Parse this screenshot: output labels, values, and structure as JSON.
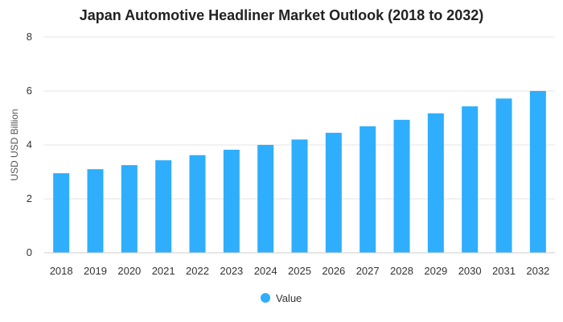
{
  "chart_data": {
    "type": "bar",
    "title": "Japan Automotive Headliner Market Outlook (2018 to 2032)",
    "xlabel": "",
    "ylabel": "USD USD Billion",
    "categories": [
      "2018",
      "2019",
      "2020",
      "2021",
      "2022",
      "2023",
      "2024",
      "2025",
      "2026",
      "2027",
      "2028",
      "2029",
      "2030",
      "2031",
      "2032"
    ],
    "series": [
      {
        "name": "Value",
        "values": [
          2.95,
          3.1,
          3.25,
          3.43,
          3.62,
          3.82,
          4.0,
          4.2,
          4.45,
          4.69,
          4.93,
          5.17,
          5.43,
          5.72,
          6.0
        ]
      }
    ],
    "ylim": [
      0,
      8
    ],
    "yticks": [
      "0",
      "2",
      "4",
      "6",
      "8"
    ],
    "grid": true,
    "legend": "bottom",
    "colors": {
      "bar": "#2eaefc"
    }
  }
}
